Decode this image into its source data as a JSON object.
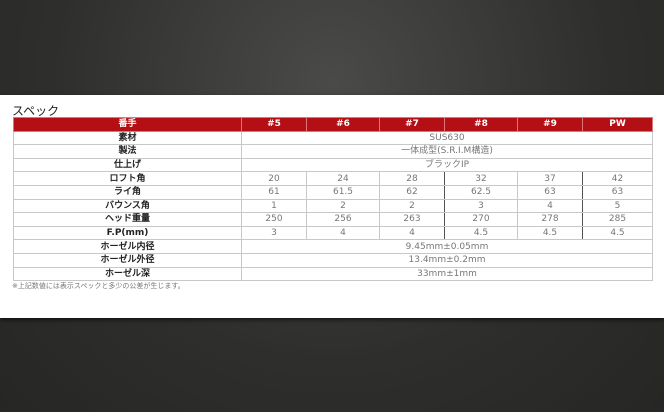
{
  "section_title": "スペック",
  "header": [
    "番手",
    "#5",
    "#6",
    "#7",
    "#8",
    "#9",
    "PW"
  ],
  "rows_merged_top": [
    {
      "label": "素材",
      "value": "SUS630"
    },
    {
      "label": "製法",
      "value": "一体成型(S.R.I.M構造)"
    },
    {
      "label": "仕上げ",
      "value": "ブラックIP"
    }
  ],
  "rows_values": [
    {
      "label": "ロフト角",
      "values": [
        "20",
        "24",
        "28",
        "32",
        "37",
        "42"
      ]
    },
    {
      "label": "ライ角",
      "values": [
        "61",
        "61.5",
        "62",
        "62.5",
        "63",
        "63"
      ]
    },
    {
      "label": "バウンス角",
      "values": [
        "1",
        "2",
        "2",
        "3",
        "4",
        "5"
      ]
    },
    {
      "label": "ヘッド重量",
      "values": [
        "250",
        "256",
        "263",
        "270",
        "278",
        "285"
      ]
    },
    {
      "label": "F.P(mm)",
      "values": [
        "3",
        "4",
        "4",
        "4.5",
        "4.5",
        "4.5"
      ]
    }
  ],
  "rows_merged_bottom": [
    {
      "label": "ホーゼル内径",
      "value": "9.45mm±0.05mm"
    },
    {
      "label": "ホーゼル外径",
      "value": "13.4mm±0.2mm"
    },
    {
      "label": "ホーゼル深",
      "value": "33mm±1mm"
    }
  ],
  "footnote": "※上記数値には表示スペックと多少の公差が生じます。",
  "colors": {
    "header_bg": "#b30f14",
    "header_text": "#ffffff"
  }
}
